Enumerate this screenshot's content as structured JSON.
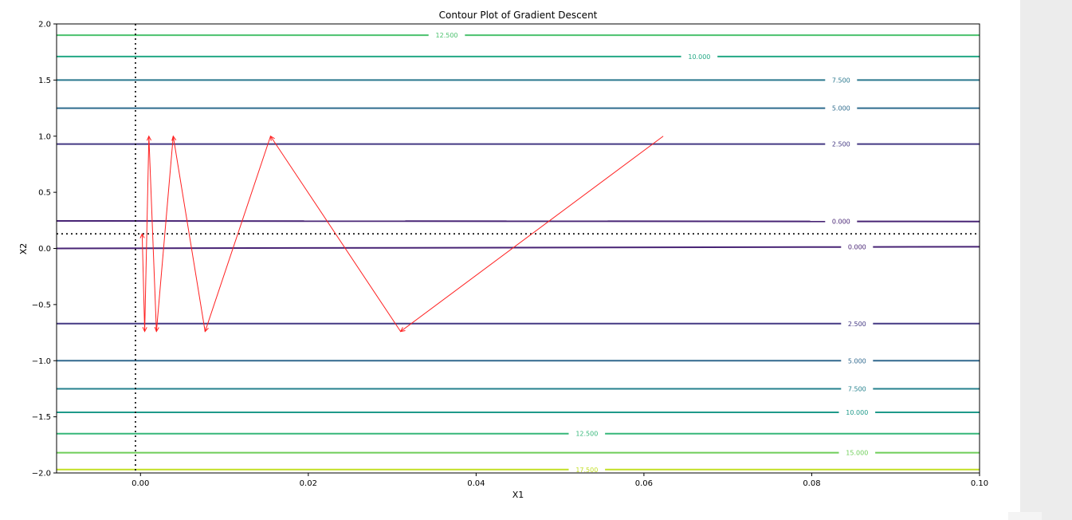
{
  "panel": {
    "bg": "#ececec"
  },
  "chart_data": {
    "type": "line",
    "title": "Contour Plot of Gradient Descent",
    "xlabel": "X1",
    "ylabel": "X2",
    "xlim": [
      -0.01,
      0.1
    ],
    "ylim": [
      -2.0,
      2.0
    ],
    "xticks": [
      0.0,
      0.02,
      0.04,
      0.06,
      0.08,
      0.1
    ],
    "xtick_labels": [
      "0.00",
      "0.02",
      "0.04",
      "0.06",
      "0.08",
      "0.10"
    ],
    "yticks": [
      2.0,
      1.5,
      1.0,
      0.5,
      0.0,
      -0.5,
      -1.0,
      -1.5,
      -2.0
    ],
    "ytick_labels": [
      "2.0",
      "1.5",
      "1.0",
      "0.5",
      "0.0",
      "−0.5",
      "−1.0",
      "−1.5",
      "−2.0"
    ],
    "grid": false,
    "contours": [
      {
        "level_label": "12.500",
        "y": 1.9,
        "color": "#4ac16d",
        "label_x": 0.0365
      },
      {
        "level_label": "10.000",
        "y": 1.71,
        "color": "#22a884",
        "label_x": 0.0666
      },
      {
        "level_label": "7.500",
        "y": 1.5,
        "color": "#2a788e",
        "label_x": 0.0835
      },
      {
        "level_label": "5.000",
        "y": 1.25,
        "color": "#2f6c8e",
        "label_x": 0.0835
      },
      {
        "level_label": "2.500",
        "y": 0.93,
        "color": "#443983",
        "label_x": 0.0835
      },
      {
        "level_label": "0.000",
        "y": 0.245,
        "y_end": 0.24,
        "color": "#482475",
        "label_x": 0.0835
      },
      {
        "level_label": "0.000",
        "y": 0.0,
        "y_end": 0.015,
        "color": "#482475",
        "label_x": 0.0854
      },
      {
        "level_label": "2.500",
        "y": -0.67,
        "color": "#443983",
        "label_x": 0.0854
      },
      {
        "level_label": "5.000",
        "y": -1.0,
        "color": "#30688e",
        "label_x": 0.0854
      },
      {
        "level_label": "7.500",
        "y": -1.25,
        "color": "#26828e",
        "label_x": 0.0854
      },
      {
        "level_label": "10.000",
        "y": -1.46,
        "color": "#1f9a8a",
        "label_x": 0.0854
      },
      {
        "level_label": "12.500",
        "y": -1.65,
        "color": "#35b779",
        "label_x": 0.0532
      },
      {
        "level_label": "15.000",
        "y": -1.82,
        "color": "#6ece58",
        "label_x": 0.0854
      },
      {
        "level_label": "17.500",
        "y": -1.97,
        "color": "#c2df23",
        "label_x": 0.0532
      }
    ],
    "reference_lines": [
      {
        "orientation": "vertical",
        "value": -0.0006
      },
      {
        "orientation": "horizontal",
        "value": 0.13
      }
    ],
    "descent_path": {
      "color": "#ff2020",
      "points": [
        [
          0.0623,
          1.0
        ],
        [
          0.031,
          -0.74
        ],
        [
          0.0155,
          1.0
        ],
        [
          0.0077,
          -0.74
        ],
        [
          0.0039,
          1.0
        ],
        [
          0.0019,
          -0.74
        ],
        [
          0.001,
          1.0
        ],
        [
          0.0005,
          -0.74
        ],
        [
          0.0002,
          0.13
        ]
      ]
    }
  }
}
